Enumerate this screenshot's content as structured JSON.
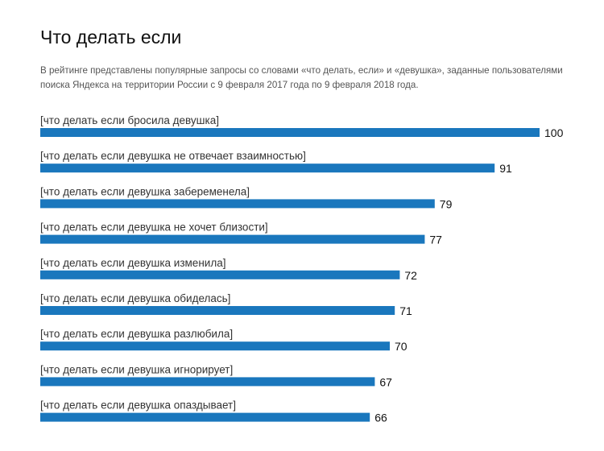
{
  "header": {
    "title": "Что делать если",
    "subtitle": "В рейтинге представлены популярные запросы со словами «что делать, если» и «девушка», заданные пользователями поиска Яндекса на территории России с 9 февраля 2017 года по 9 февраля 2018 года."
  },
  "chart_data": {
    "type": "bar",
    "orientation": "horizontal",
    "categories": [
      "[что делать если бросила девушка]",
      "[что делать если девушка не отвечает взаимностью]",
      "[что делать если девушка забеременела]",
      "[что делать если девушка не хочет близости]",
      "[что делать если девушка изменила]",
      "[что делать если девушка обиделась]",
      "[что делать если девушка разлюбила]",
      "[что делать если девушка игнорирует]",
      "[что делать если девушка опаздывает]"
    ],
    "values": [
      100,
      91,
      79,
      77,
      72,
      71,
      70,
      67,
      66
    ],
    "xlim": [
      0,
      100
    ],
    "bar_color": "#1a77bd",
    "grid": false,
    "legend": "none"
  }
}
